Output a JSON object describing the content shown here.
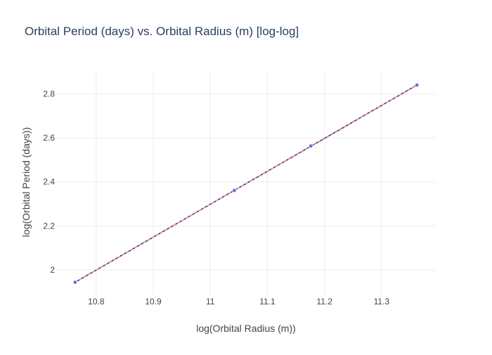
{
  "chart_data": {
    "type": "line",
    "title": "Orbital Period (days) vs. Orbital Radius (m) [log-log]",
    "xlabel": "log(Orbital Radius (m))",
    "ylabel": "log(Orbital Period (days))",
    "xlim": [
      10.73,
      11.395
    ],
    "ylim": [
      1.885,
      2.907
    ],
    "x_ticks": [
      10.8,
      10.9,
      11.0,
      11.1,
      11.2,
      11.3
    ],
    "x_tick_labels": [
      "10.8",
      "10.9",
      "11",
      "11.1",
      "11.2",
      "11.3"
    ],
    "y_ticks": [
      2.0,
      2.2,
      2.4,
      2.6,
      2.8
    ],
    "y_tick_labels": [
      "2",
      "2.2",
      "2.4",
      "2.6",
      "2.8"
    ],
    "grid": true,
    "legend": "none",
    "series": [
      {
        "x": [
          10.763,
          11.042,
          11.176,
          11.362
        ],
        "y": [
          1.944,
          2.361,
          2.563,
          2.84
        ],
        "color": "#6a6ed6",
        "mode": "markers+dashed-line"
      },
      {
        "x": [
          10.763,
          11.362
        ],
        "y": [
          1.944,
          2.84
        ],
        "color": "#3b2a8a",
        "mode": "line"
      }
    ]
  },
  "colors": {
    "grid": "#eeeeee",
    "text": "#444444",
    "title": "#2a3f5f",
    "background": "#ffffff",
    "dashed_overlay": "#ef9a9a"
  }
}
